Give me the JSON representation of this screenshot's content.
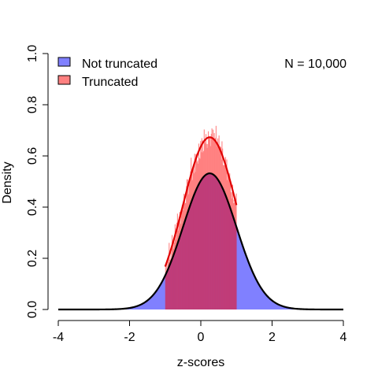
{
  "chart_data": {
    "type": "area",
    "xlabel": "z-scores",
    "ylabel": "Density",
    "xlim": [
      -4,
      4
    ],
    "ylim": [
      0,
      1
    ],
    "x_ticks": [
      "-4",
      "-2",
      "0",
      "2",
      "4"
    ],
    "y_ticks": [
      "0.0",
      "0.2",
      "0.4",
      "0.6",
      "0.8",
      "1.0"
    ],
    "annotation": "N = 10,000",
    "legend": {
      "placement": "top-left",
      "entries": [
        {
          "label": "Not truncated",
          "color": "#8080ff"
        },
        {
          "label": "Truncated",
          "color": "#ff8080"
        }
      ]
    },
    "series": [
      {
        "name": "Not truncated",
        "kind": "density",
        "mean": 0.25,
        "sd": 0.75,
        "x_range": [
          -4,
          4
        ],
        "fill_range": [
          -2.2,
          2.7
        ],
        "fill_color": "#8080ff",
        "line_color": "#000000"
      },
      {
        "name": "Truncated",
        "kind": "density",
        "mean": 0.25,
        "sd": 0.75,
        "truncation": [
          -1,
          1
        ],
        "x_range": [
          -1,
          1
        ],
        "line_scale": 1.265,
        "fill_color": "#ff8080",
        "line_color": "#e00000",
        "histogram_noise": true
      }
    ],
    "overlap_color": "#c03c78"
  }
}
